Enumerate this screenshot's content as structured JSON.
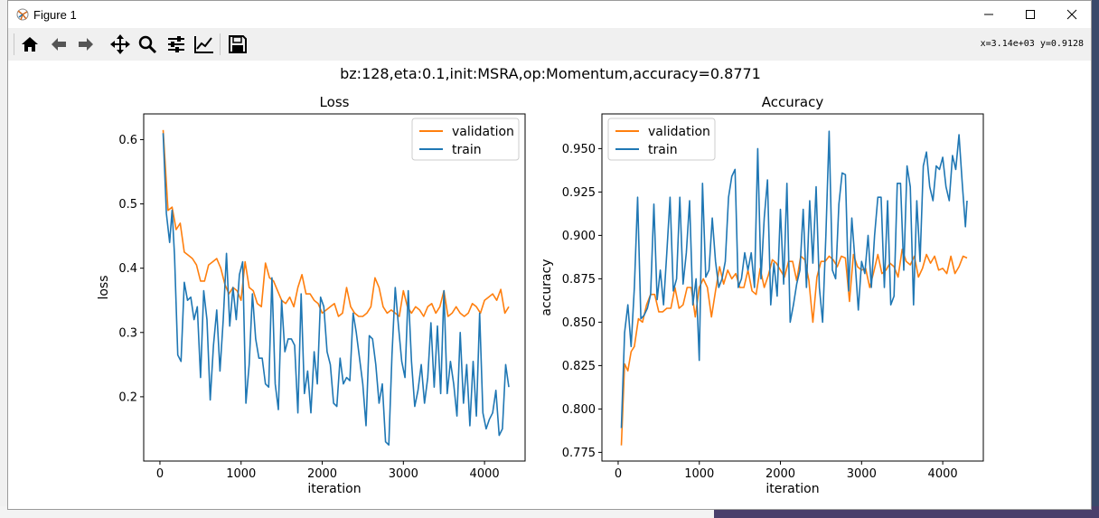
{
  "window": {
    "title": "Figure 1",
    "coord_readout": "x=3.14e+03 y=0.9128"
  },
  "toolbar": {
    "buttons": [
      {
        "name": "home-icon"
      },
      {
        "name": "back-icon"
      },
      {
        "name": "forward-icon"
      },
      {
        "name": "pan-icon"
      },
      {
        "name": "zoom-icon"
      },
      {
        "name": "configure-subplots-icon"
      },
      {
        "name": "edit-axis-icon"
      },
      {
        "name": "save-icon"
      }
    ]
  },
  "figure": {
    "suptitle": "bz:128,eta:0.1,init:MSRA,op:Momentum,accuracy=0.8771"
  },
  "colors": {
    "validation": "#ff7f0e",
    "train": "#1f77b4"
  },
  "chart_data": [
    {
      "type": "line",
      "title": "Loss",
      "xlabel": "iteration",
      "ylabel": "loss",
      "xlim": [
        -200,
        4500
      ],
      "ylim": [
        0.1,
        0.64
      ],
      "xticks": [
        0,
        1000,
        2000,
        3000,
        4000
      ],
      "yticks": [
        0.2,
        0.3,
        0.4,
        0.5,
        0.6
      ],
      "ytick_labels": [
        "0.2",
        "0.3",
        "0.4",
        "0.5",
        "0.6"
      ],
      "legend": "upper right",
      "series": [
        {
          "name": "validation",
          "x": [
            40,
            100,
            150,
            200,
            250,
            300,
            350,
            400,
            450,
            500,
            550,
            600,
            650,
            700,
            750,
            800,
            850,
            900,
            950,
            1000,
            1050,
            1100,
            1150,
            1200,
            1250,
            1300,
            1350,
            1400,
            1450,
            1500,
            1550,
            1600,
            1650,
            1700,
            1750,
            1800,
            1850,
            1900,
            1950,
            2000,
            2050,
            2100,
            2150,
            2200,
            2250,
            2300,
            2350,
            2400,
            2450,
            2500,
            2550,
            2600,
            2650,
            2700,
            2750,
            2800,
            2850,
            2900,
            2950,
            3000,
            3050,
            3100,
            3150,
            3200,
            3250,
            3300,
            3350,
            3400,
            3450,
            3500,
            3550,
            3600,
            3650,
            3700,
            3750,
            3800,
            3850,
            3900,
            3950,
            4000,
            4050,
            4100,
            4150,
            4200,
            4250,
            4300
          ],
          "values": [
            0.615,
            0.49,
            0.495,
            0.46,
            0.47,
            0.425,
            0.42,
            0.415,
            0.405,
            0.38,
            0.38,
            0.405,
            0.41,
            0.415,
            0.4,
            0.375,
            0.36,
            0.37,
            0.365,
            0.35,
            0.41,
            0.37,
            0.365,
            0.345,
            0.34,
            0.408,
            0.385,
            0.38,
            0.365,
            0.35,
            0.345,
            0.355,
            0.34,
            0.37,
            0.39,
            0.36,
            0.36,
            0.35,
            0.345,
            0.33,
            0.335,
            0.34,
            0.345,
            0.325,
            0.33,
            0.37,
            0.34,
            0.33,
            0.325,
            0.325,
            0.33,
            0.34,
            0.385,
            0.37,
            0.34,
            0.33,
            0.335,
            0.33,
            0.325,
            0.365,
            0.34,
            0.33,
            0.34,
            0.335,
            0.325,
            0.34,
            0.345,
            0.33,
            0.34,
            0.365,
            0.325,
            0.33,
            0.34,
            0.33,
            0.325,
            0.33,
            0.345,
            0.34,
            0.33,
            0.35,
            0.355,
            0.36,
            0.35,
            0.367,
            0.33,
            0.34
          ]
        },
        {
          "name": "train",
          "x": [
            40,
            80,
            120,
            150,
            180,
            220,
            260,
            300,
            340,
            380,
            420,
            460,
            500,
            540,
            580,
            620,
            660,
            700,
            740,
            780,
            820,
            860,
            900,
            940,
            980,
            1020,
            1060,
            1100,
            1140,
            1180,
            1220,
            1260,
            1300,
            1340,
            1380,
            1420,
            1460,
            1500,
            1540,
            1580,
            1620,
            1660,
            1700,
            1740,
            1780,
            1820,
            1860,
            1900,
            1940,
            1980,
            2020,
            2060,
            2100,
            2140,
            2180,
            2220,
            2260,
            2300,
            2340,
            2380,
            2420,
            2460,
            2500,
            2540,
            2580,
            2620,
            2660,
            2700,
            2740,
            2780,
            2820,
            2860,
            2900,
            2940,
            2980,
            3020,
            3060,
            3100,
            3140,
            3180,
            3220,
            3260,
            3300,
            3340,
            3380,
            3420,
            3460,
            3500,
            3540,
            3580,
            3620,
            3660,
            3700,
            3740,
            3780,
            3820,
            3860,
            3900,
            3940,
            3980,
            4020,
            4060,
            4100,
            4140,
            4180,
            4220,
            4260,
            4300
          ],
          "values": [
            0.61,
            0.485,
            0.44,
            0.49,
            0.42,
            0.265,
            0.255,
            0.378,
            0.35,
            0.355,
            0.32,
            0.34,
            0.23,
            0.365,
            0.32,
            0.195,
            0.28,
            0.335,
            0.24,
            0.32,
            0.423,
            0.31,
            0.37,
            0.32,
            0.39,
            0.41,
            0.19,
            0.25,
            0.36,
            0.29,
            0.26,
            0.26,
            0.22,
            0.215,
            0.385,
            0.22,
            0.18,
            0.35,
            0.27,
            0.29,
            0.29,
            0.28,
            0.175,
            0.36,
            0.205,
            0.24,
            0.175,
            0.27,
            0.22,
            0.355,
            0.34,
            0.27,
            0.25,
            0.19,
            0.185,
            0.26,
            0.22,
            0.23,
            0.225,
            0.33,
            0.3,
            0.26,
            0.22,
            0.155,
            0.295,
            0.29,
            0.25,
            0.19,
            0.22,
            0.13,
            0.125,
            0.265,
            0.37,
            0.31,
            0.255,
            0.23,
            0.365,
            0.255,
            0.185,
            0.21,
            0.25,
            0.19,
            0.23,
            0.315,
            0.215,
            0.31,
            0.205,
            0.365,
            0.205,
            0.255,
            0.22,
            0.17,
            0.3,
            0.19,
            0.25,
            0.155,
            0.255,
            0.17,
            0.33,
            0.175,
            0.15,
            0.165,
            0.175,
            0.21,
            0.14,
            0.15,
            0.25,
            0.215
          ]
        }
      ]
    },
    {
      "type": "line",
      "title": "Accuracy",
      "xlabel": "iteration",
      "ylabel": "accuracy",
      "xlim": [
        -200,
        4500
      ],
      "ylim": [
        0.77,
        0.97
      ],
      "xticks": [
        0,
        1000,
        2000,
        3000,
        4000
      ],
      "yticks": [
        0.775,
        0.8,
        0.825,
        0.85,
        0.875,
        0.9,
        0.925,
        0.95
      ],
      "ytick_labels": [
        "0.775",
        "0.800",
        "0.825",
        "0.850",
        "0.875",
        "0.900",
        "0.925",
        "0.950"
      ],
      "legend": "upper left",
      "series": [
        {
          "name": "validation",
          "x": [
            40,
            80,
            120,
            160,
            200,
            250,
            300,
            350,
            400,
            450,
            500,
            550,
            600,
            650,
            700,
            750,
            800,
            850,
            900,
            950,
            1000,
            1050,
            1100,
            1150,
            1200,
            1250,
            1300,
            1350,
            1400,
            1450,
            1500,
            1550,
            1600,
            1650,
            1700,
            1750,
            1800,
            1850,
            1900,
            1950,
            2000,
            2050,
            2100,
            2150,
            2200,
            2250,
            2300,
            2350,
            2400,
            2450,
            2500,
            2550,
            2600,
            2650,
            2700,
            2750,
            2800,
            2850,
            2900,
            2950,
            3000,
            3050,
            3100,
            3150,
            3200,
            3250,
            3300,
            3350,
            3400,
            3450,
            3500,
            3550,
            3600,
            3650,
            3700,
            3750,
            3800,
            3850,
            3900,
            3950,
            4000,
            4050,
            4100,
            4150,
            4200,
            4250,
            4300
          ],
          "values": [
            0.779,
            0.826,
            0.822,
            0.833,
            0.836,
            0.852,
            0.85,
            0.86,
            0.866,
            0.866,
            0.856,
            0.856,
            0.858,
            0.858,
            0.87,
            0.858,
            0.86,
            0.87,
            0.87,
            0.853,
            0.87,
            0.875,
            0.87,
            0.853,
            0.868,
            0.882,
            0.872,
            0.88,
            0.875,
            0.878,
            0.87,
            0.87,
            0.88,
            0.868,
            0.866,
            0.881,
            0.87,
            0.877,
            0.886,
            0.884,
            0.88,
            0.876,
            0.885,
            0.885,
            0.874,
            0.888,
            0.886,
            0.874,
            0.85,
            0.876,
            0.885,
            0.885,
            0.888,
            0.886,
            0.882,
            0.888,
            0.887,
            0.862,
            0.889,
            0.882,
            0.88,
            0.881,
            0.87,
            0.879,
            0.889,
            0.878,
            0.88,
            0.884,
            0.882,
            0.876,
            0.892,
            0.885,
            0.883,
            0.888,
            0.876,
            0.881,
            0.889,
            0.884,
            0.888,
            0.88,
            0.881,
            0.878,
            0.888,
            0.878,
            0.882,
            0.888,
            0.887
          ]
        },
        {
          "name": "train",
          "x": [
            40,
            80,
            120,
            160,
            200,
            240,
            280,
            320,
            360,
            400,
            440,
            480,
            520,
            560,
            600,
            640,
            680,
            720,
            760,
            800,
            840,
            880,
            920,
            960,
            1000,
            1040,
            1080,
            1120,
            1160,
            1200,
            1240,
            1280,
            1320,
            1360,
            1400,
            1440,
            1480,
            1520,
            1560,
            1600,
            1640,
            1680,
            1720,
            1760,
            1800,
            1840,
            1880,
            1920,
            1960,
            2000,
            2040,
            2080,
            2120,
            2160,
            2200,
            2240,
            2280,
            2320,
            2360,
            2400,
            2440,
            2480,
            2520,
            2560,
            2600,
            2640,
            2680,
            2720,
            2760,
            2800,
            2840,
            2880,
            2920,
            2960,
            3000,
            3040,
            3080,
            3120,
            3160,
            3200,
            3240,
            3280,
            3320,
            3360,
            3400,
            3440,
            3480,
            3520,
            3560,
            3600,
            3640,
            3680,
            3720,
            3760,
            3800,
            3840,
            3880,
            3920,
            3960,
            4000,
            4040,
            4080,
            4120,
            4160,
            4200,
            4240,
            4280,
            4300
          ],
          "values": [
            0.789,
            0.844,
            0.86,
            0.836,
            0.87,
            0.922,
            0.852,
            0.854,
            0.858,
            0.866,
            0.918,
            0.863,
            0.88,
            0.86,
            0.89,
            0.922,
            0.868,
            0.875,
            0.922,
            0.872,
            0.89,
            0.92,
            0.86,
            0.875,
            0.828,
            0.93,
            0.876,
            0.88,
            0.91,
            0.885,
            0.87,
            0.875,
            0.885,
            0.922,
            0.934,
            0.938,
            0.87,
            0.875,
            0.89,
            0.88,
            0.89,
            0.87,
            0.95,
            0.875,
            0.91,
            0.932,
            0.86,
            0.884,
            0.865,
            0.915,
            0.872,
            0.93,
            0.85,
            0.86,
            0.872,
            0.88,
            0.915,
            0.87,
            0.92,
            0.884,
            0.928,
            0.87,
            0.85,
            0.9,
            0.96,
            0.88,
            0.875,
            0.918,
            0.936,
            0.935,
            0.868,
            0.91,
            0.885,
            0.857,
            0.885,
            0.878,
            0.9,
            0.87,
            0.9,
            0.922,
            0.922,
            0.87,
            0.92,
            0.86,
            0.865,
            0.93,
            0.93,
            0.88,
            0.94,
            0.928,
            0.86,
            0.92,
            0.885,
            0.94,
            0.948,
            0.928,
            0.92,
            0.94,
            0.938,
            0.945,
            0.928,
            0.92,
            0.946,
            0.938,
            0.958,
            0.93,
            0.905,
            0.92
          ]
        }
      ]
    }
  ]
}
